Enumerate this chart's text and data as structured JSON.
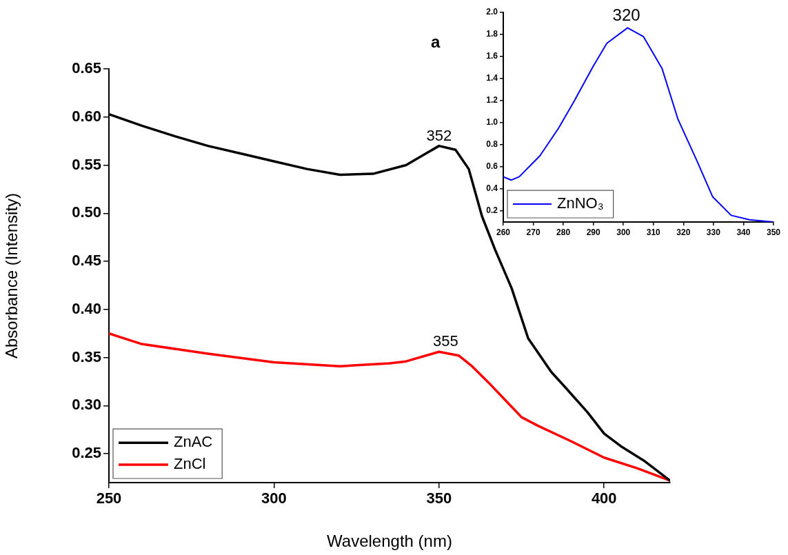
{
  "chart_data": [
    {
      "type": "line",
      "xlabel": "Wavelength (nm)",
      "ylabel": "Absorbance (Intensity)",
      "annotations": [
        "a",
        {
          "text": "352",
          "x": 350,
          "y": 0.57
        },
        {
          "text": "355",
          "x": 352,
          "y": 0.356
        }
      ],
      "xlim": [
        250,
        420
      ],
      "xticks": [
        250,
        300,
        350,
        400
      ],
      "ylim": [
        0.22,
        0.65
      ],
      "yticks": [
        0.25,
        {
          "value": 0.3,
          "label": "0.30"
        },
        0.35,
        {
          "value": 0.4,
          "label": "0.40"
        },
        0.45,
        {
          "value": 0.5,
          "label": "0.50"
        },
        0.55,
        {
          "value": 0.6,
          "label": "0.60"
        },
        0.65
      ],
      "grid": false,
      "legend": "bottom left",
      "marker": "none",
      "line_style": "solid",
      "series": [
        {
          "name": "ZnAC",
          "color": "#000000",
          "x": [
            250,
            260,
            270,
            280,
            290,
            300,
            310,
            320,
            330,
            340,
            345,
            350,
            355,
            359,
            363,
            367,
            372,
            377,
            384,
            388,
            395,
            400,
            405,
            412,
            420
          ],
          "values": [
            0.603,
            0.591,
            0.58,
            0.57,
            0.562,
            0.554,
            0.546,
            0.54,
            0.541,
            0.55,
            0.56,
            0.57,
            0.566,
            0.546,
            0.497,
            0.462,
            0.422,
            0.37,
            0.335,
            0.32,
            0.293,
            0.271,
            0.258,
            0.243,
            0.222
          ]
        },
        {
          "name": "ZnCl",
          "color": "#ff0000",
          "x": [
            250,
            260,
            280,
            300,
            320,
            335,
            340,
            350,
            356,
            360,
            365,
            370,
            375,
            380,
            390,
            400,
            410,
            420
          ],
          "values": [
            0.375,
            0.364,
            0.354,
            0.345,
            0.341,
            0.344,
            0.346,
            0.356,
            0.352,
            0.341,
            0.324,
            0.306,
            0.288,
            0.279,
            0.263,
            0.246,
            0.235,
            0.222
          ]
        }
      ]
    },
    {
      "type": "line",
      "annotations": [
        {
          "text": "320",
          "x": 301,
          "y": 1.87
        }
      ],
      "xlim": [
        260,
        350
      ],
      "xticks": [
        260,
        270,
        280,
        290,
        300,
        310,
        320,
        330,
        340,
        350
      ],
      "ylim": [
        0.1,
        2.0
      ],
      "yticks": [
        0.2,
        0.4,
        0.6,
        0.8,
        {
          "value": 1,
          "label": "1.0"
        },
        1.2,
        1.4,
        1.6,
        1.8,
        {
          "value": 2,
          "label": "2.0"
        }
      ],
      "grid": false,
      "legend": "bottom left",
      "marker": "none",
      "line_style": "solid",
      "series": [
        {
          "name": "ZnNO₃",
          "color": "#0000ff",
          "x": [
            260,
            262.7,
            265.3,
            272.2,
            278.4,
            283.7,
            289.9,
            294.5,
            301.4,
            306.7,
            312.9,
            318.2,
            324.4,
            329.7,
            335.9,
            342,
            350
          ],
          "values": [
            0.51,
            0.48,
            0.51,
            0.7,
            0.95,
            1.2,
            1.51,
            1.72,
            1.86,
            1.78,
            1.49,
            1.03,
            0.66,
            0.33,
            0.16,
            0.12,
            0.1
          ]
        }
      ]
    }
  ]
}
